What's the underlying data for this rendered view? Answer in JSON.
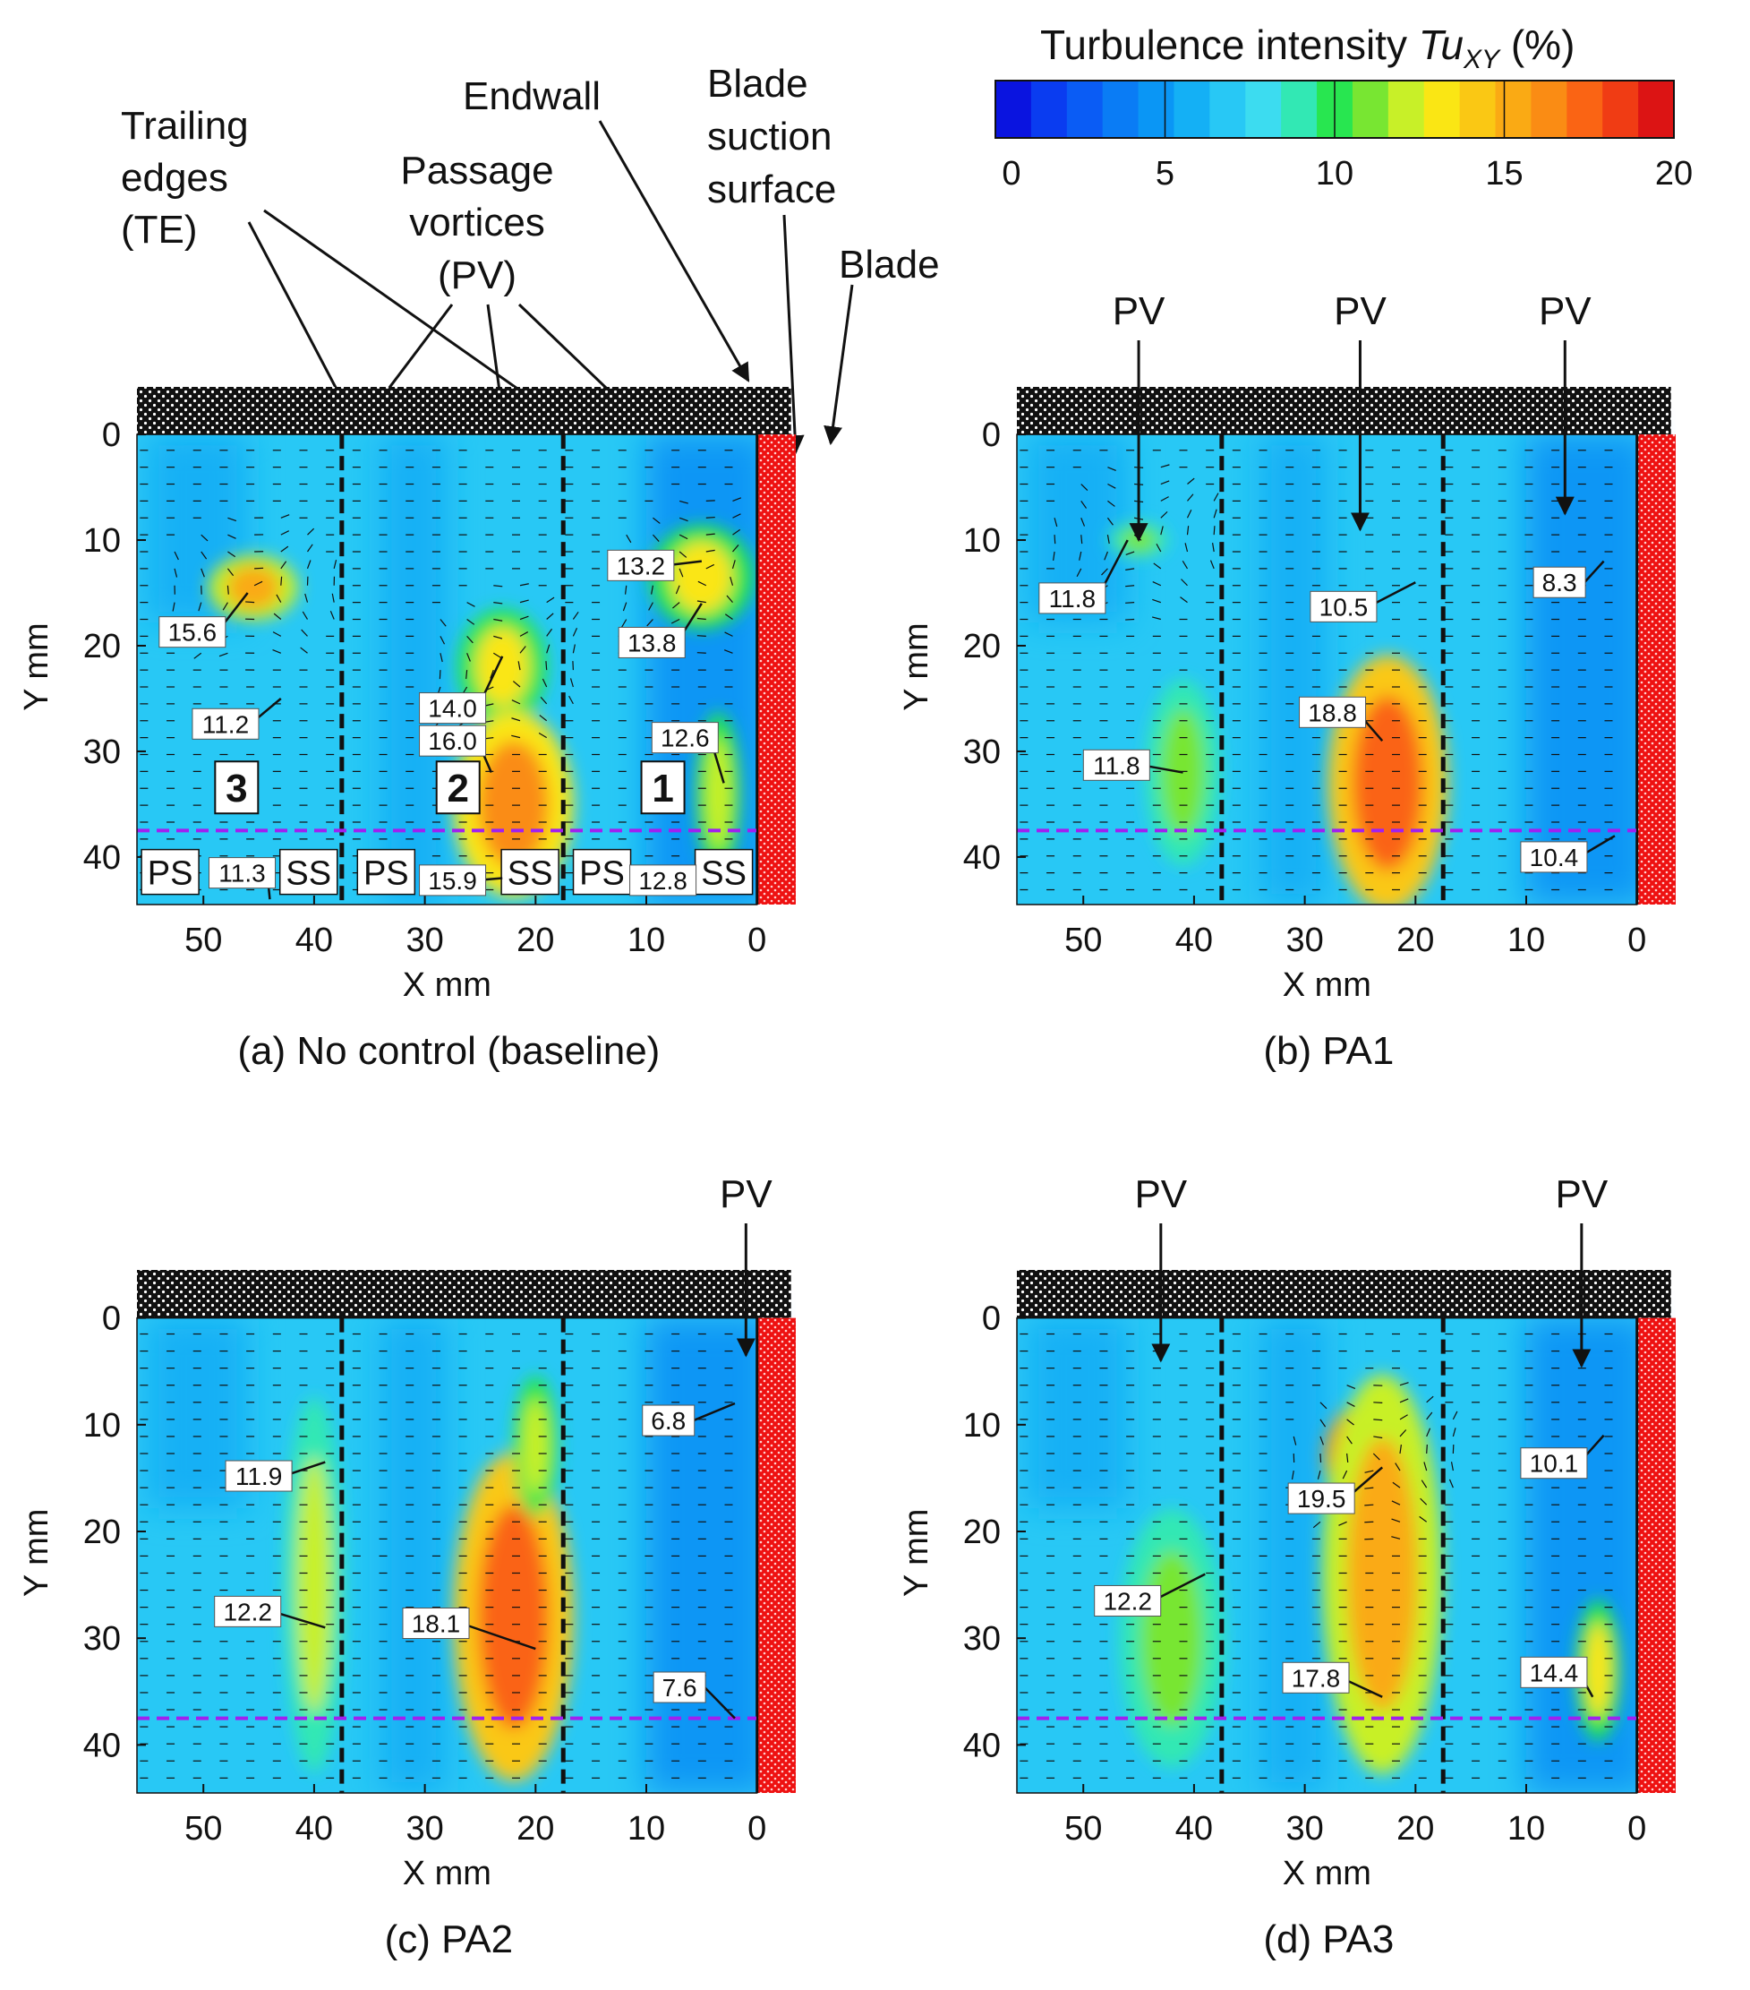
{
  "chart_data": {
    "type": "heatmap",
    "colorbar": {
      "title": "Turbulence intensity ",
      "title_symbol": "Tu",
      "title_subscript": "XY",
      "title_unit": " (%)",
      "min": 0,
      "max": 20,
      "ticks": [
        "0",
        "5",
        "10",
        "15",
        "20"
      ],
      "colors": [
        "#0a14e0",
        "#0a3cf0",
        "#0a5cf5",
        "#0a7cf5",
        "#0a96f5",
        "#14b0f5",
        "#28c8f5",
        "#3cdcf0",
        "#32e8b4",
        "#28e650",
        "#78e632",
        "#c8f028",
        "#fae614",
        "#fac814",
        "#faaa14",
        "#fa8c14",
        "#fa6414",
        "#f03c14",
        "#dc1414"
      ]
    },
    "panels": [
      {
        "id": "a",
        "caption": "(a) No control (baseline)",
        "xlabel": "X mm",
        "ylabel": "Y mm",
        "xticks": [
          "50",
          "40",
          "30",
          "20",
          "10",
          "0"
        ],
        "yticks": [
          "0",
          "10",
          "20",
          "30",
          "40"
        ],
        "xlim": [
          56,
          -3.5
        ],
        "ylim": [
          -4.5,
          44.5
        ],
        "trailing_edges_x": [
          37.5,
          17.5
        ],
        "reference_line_y": 37.5,
        "regions": [
          "3",
          "2",
          "1"
        ],
        "surface_labels": [
          "PS",
          "SS",
          "PS",
          "SS",
          "PS",
          "SS"
        ],
        "data_labels": [
          {
            "text": "15.6",
            "x": 46,
            "y": 15,
            "lx": 51,
            "ly": 18.7
          },
          {
            "text": "11.2",
            "x": 43,
            "y": 25,
            "lx": 48,
            "ly": 27.4
          },
          {
            "text": "14.0",
            "x": 23,
            "y": 21,
            "lx": 27.5,
            "ly": 25.9
          },
          {
            "text": "16.0",
            "x": 24,
            "y": 32,
            "lx": 27.5,
            "ly": 29
          },
          {
            "text": "15.9",
            "x": 23,
            "y": 42,
            "lx": 27.5,
            "ly": 42.2
          },
          {
            "text": "13.2",
            "x": 5,
            "y": 12,
            "lx": 10.5,
            "ly": 12.4
          },
          {
            "text": "13.8",
            "x": 5,
            "y": 16,
            "lx": 9.5,
            "ly": 19.7
          },
          {
            "text": "12.6",
            "x": 3,
            "y": 33,
            "lx": 6.5,
            "ly": 28.7
          },
          {
            "text": "11.3",
            "x": 44,
            "y": 44,
            "lx": 46.5,
            "ly": 41.5
          },
          {
            "text": "12.8",
            "x": 8,
            "y": 42,
            "lx": 8.5,
            "ly": 42.2
          }
        ],
        "hotspots": [
          {
            "x": 45.5,
            "y": 14.5,
            "rx": 3,
            "ry": 2.8,
            "value": 15.6
          },
          {
            "x": 5,
            "y": 13.5,
            "rx": 3.5,
            "ry": 4.5,
            "value": 13.5
          },
          {
            "x": 23,
            "y": 22,
            "rx": 3,
            "ry": 5,
            "value": 13.5
          },
          {
            "x": 22,
            "y": 35,
            "rx": 4,
            "ry": 8,
            "value": 15.8
          },
          {
            "x": 3.5,
            "y": 34,
            "rx": 1.5,
            "ry": 7,
            "value": 12.5
          }
        ]
      },
      {
        "id": "b",
        "caption": "(b) PA1",
        "xlabel": "X mm",
        "ylabel": "Y mm",
        "xticks": [
          "50",
          "40",
          "30",
          "20",
          "10",
          "0"
        ],
        "yticks": [
          "0",
          "10",
          "20",
          "30",
          "40"
        ],
        "xlim": [
          56,
          -3.5
        ],
        "ylim": [
          -4.5,
          44.5
        ],
        "trailing_edges_x": [
          37.5,
          17.5
        ],
        "reference_line_y": 37.5,
        "callouts": [
          "PV",
          "PV",
          "PV"
        ],
        "data_labels": [
          {
            "text": "11.8",
            "x": 46,
            "y": 10,
            "lx": 51,
            "ly": 15.5
          },
          {
            "text": "10.5",
            "x": 20,
            "y": 14,
            "lx": 26.5,
            "ly": 16.3
          },
          {
            "text": "8.3",
            "x": 3,
            "y": 12,
            "lx": 7,
            "ly": 14
          },
          {
            "text": "18.8",
            "x": 23,
            "y": 29,
            "lx": 27.5,
            "ly": 26.3
          },
          {
            "text": "11.8",
            "x": 41,
            "y": 32,
            "lx": 47,
            "ly": 31.3
          },
          {
            "text": "10.4",
            "x": 2,
            "y": 38,
            "lx": 7.5,
            "ly": 40
          }
        ],
        "hotspots": [
          {
            "x": 45,
            "y": 10,
            "rx": 2,
            "ry": 1.5,
            "value": 11.5
          },
          {
            "x": 22.5,
            "y": 33,
            "rx": 4,
            "ry": 11,
            "value": 17.5
          },
          {
            "x": 41,
            "y": 32,
            "rx": 2.5,
            "ry": 8,
            "value": 11.5
          }
        ]
      },
      {
        "id": "c",
        "caption": "(c) PA2",
        "xlabel": "X mm",
        "ylabel": "Y mm",
        "xticks": [
          "50",
          "40",
          "30",
          "20",
          "10",
          "0"
        ],
        "yticks": [
          "0",
          "10",
          "20",
          "30",
          "40"
        ],
        "xlim": [
          56,
          -3.5
        ],
        "ylim": [
          -4.5,
          44.5
        ],
        "trailing_edges_x": [
          37.5,
          17.5
        ],
        "reference_line_y": 37.5,
        "callouts": [
          "PV"
        ],
        "data_labels": [
          {
            "text": "11.9",
            "x": 39,
            "y": 13.5,
            "lx": 45,
            "ly": 14.8
          },
          {
            "text": "12.2",
            "x": 39,
            "y": 29,
            "lx": 46,
            "ly": 27.5
          },
          {
            "text": "18.1",
            "x": 20,
            "y": 31,
            "lx": 29,
            "ly": 28.6
          },
          {
            "text": "6.8",
            "x": 2,
            "y": 8,
            "lx": 8,
            "ly": 9.6
          },
          {
            "text": "7.6",
            "x": 2,
            "y": 37.5,
            "lx": 7,
            "ly": 34.6
          }
        ],
        "hotspots": [
          {
            "x": 40,
            "y": 25,
            "rx": 2,
            "ry": 16,
            "value": 12
          },
          {
            "x": 22,
            "y": 28,
            "rx": 4,
            "ry": 14,
            "value": 17.5
          },
          {
            "x": 20,
            "y": 12,
            "rx": 1.5,
            "ry": 6,
            "value": 12.5
          }
        ]
      },
      {
        "id": "d",
        "caption": "(d) PA3",
        "xlabel": "X mm",
        "ylabel": "Y mm",
        "xticks": [
          "50",
          "40",
          "30",
          "20",
          "10",
          "0"
        ],
        "yticks": [
          "0",
          "10",
          "20",
          "30",
          "40"
        ],
        "xlim": [
          56,
          -3.5
        ],
        "ylim": [
          -4.5,
          44.5
        ],
        "trailing_edges_x": [
          37.5,
          17.5
        ],
        "reference_line_y": 37.5,
        "callouts": [
          "PV",
          "PV"
        ],
        "data_labels": [
          {
            "text": "19.5",
            "x": 23,
            "y": 14,
            "lx": 28.5,
            "ly": 16.9
          },
          {
            "text": "17.8",
            "x": 23,
            "y": 35.5,
            "lx": 29,
            "ly": 33.7
          },
          {
            "text": "12.2",
            "x": 39,
            "y": 24,
            "lx": 46,
            "ly": 26.5
          },
          {
            "text": "10.1",
            "x": 3,
            "y": 11,
            "lx": 7.5,
            "ly": 13.6
          },
          {
            "text": "14.4",
            "x": 4,
            "y": 35.5,
            "lx": 7.5,
            "ly": 33.2
          }
        ],
        "hotspots": [
          {
            "x": 23.5,
            "y": 13,
            "rx": 3.5,
            "ry": 5,
            "value": 19.5
          },
          {
            "x": 23,
            "y": 24,
            "rx": 4,
            "ry": 17,
            "value": 15.5
          },
          {
            "x": 42,
            "y": 30,
            "rx": 3.5,
            "ry": 11,
            "value": 11.5
          },
          {
            "x": 3.5,
            "y": 33,
            "rx": 1.5,
            "ry": 6,
            "value": 13.5
          }
        ]
      }
    ],
    "annotations": {
      "trailing_edges": [
        "Trailing",
        "edges",
        "(TE)"
      ],
      "passage_vortices": [
        "Passage",
        "vortices",
        "(PV)"
      ],
      "endwall": "Endwall",
      "blade_suction_surface": [
        "Blade",
        "suction",
        "surface"
      ],
      "blade": "Blade"
    }
  }
}
